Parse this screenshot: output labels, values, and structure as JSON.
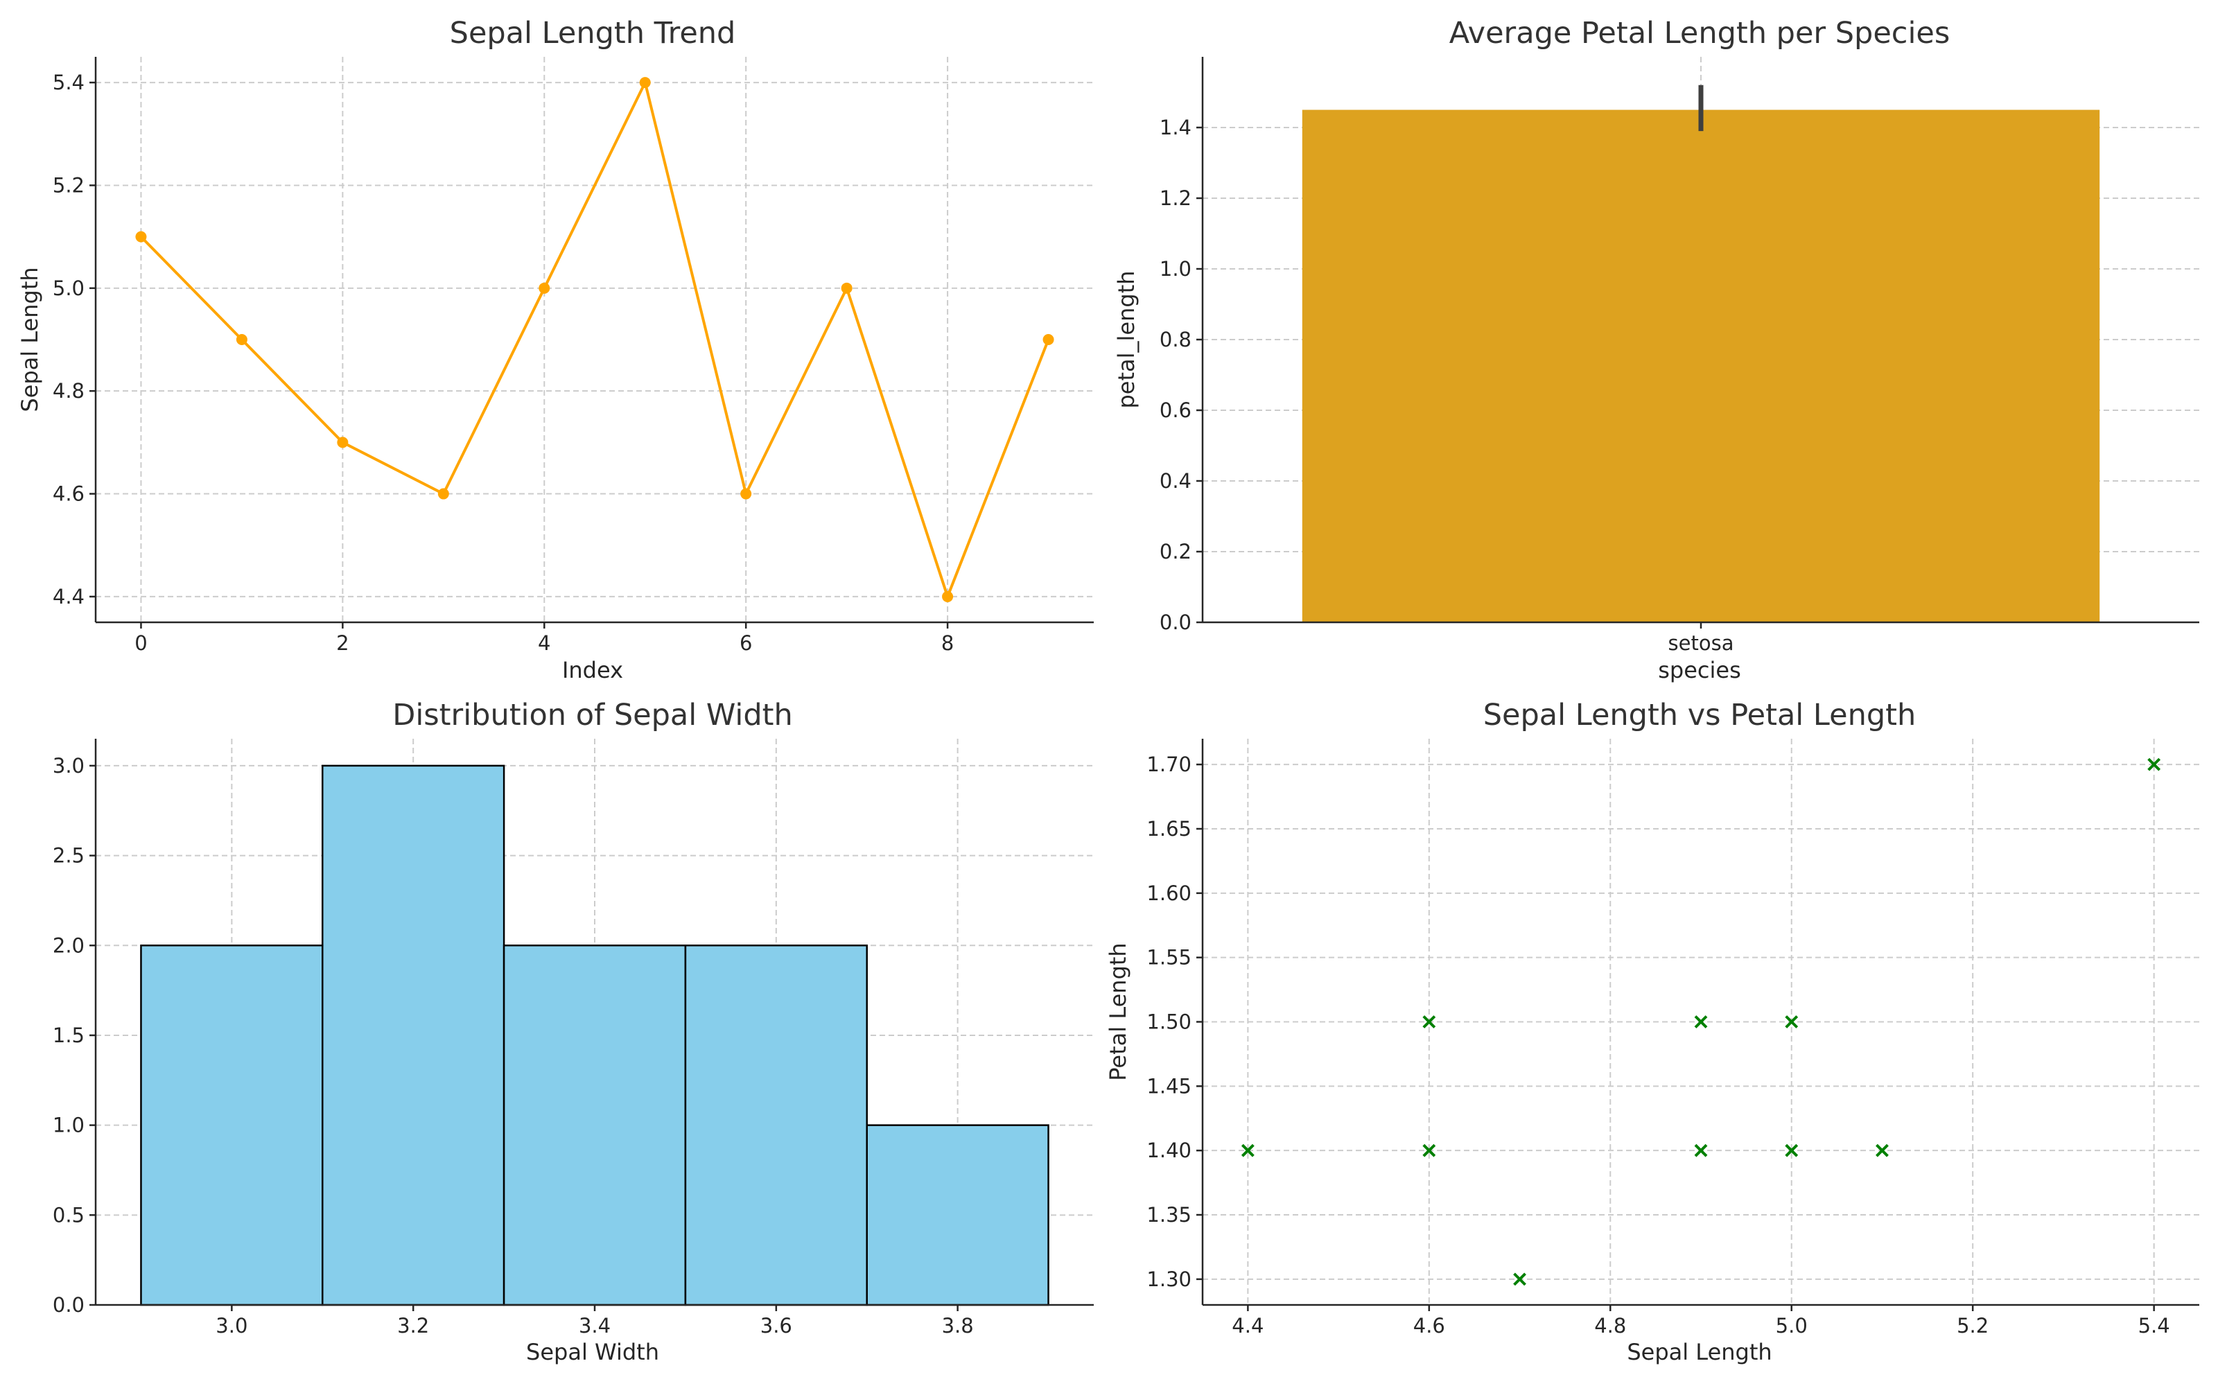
{
  "chart_data": [
    {
      "type": "line",
      "title": "Sepal Length Trend",
      "xlabel": "Index",
      "ylabel": "Sepal Length",
      "x": [
        0,
        1,
        2,
        3,
        4,
        5,
        6,
        7,
        8,
        9
      ],
      "values": [
        5.1,
        4.9,
        4.7,
        4.6,
        5.0,
        5.4,
        4.6,
        5.0,
        4.4,
        4.9
      ],
      "xlim": [
        -0.45,
        9.45
      ],
      "ylim": [
        4.35,
        5.45
      ],
      "xticks": [
        0,
        2,
        4,
        6,
        8
      ],
      "xtick_labels": [
        "0",
        "2",
        "4",
        "6",
        "8"
      ],
      "yticks": [
        4.4,
        4.6,
        4.8,
        5.0,
        5.2,
        5.4
      ],
      "ytick_labels": [
        "4.4",
        "4.6",
        "4.8",
        "5.0",
        "5.2",
        "5.4"
      ],
      "grid": true,
      "line_color": "#FFA500",
      "marker": "circle"
    },
    {
      "type": "bar",
      "title": "Average Petal Length per Species",
      "xlabel": "species",
      "ylabel": "petal_length",
      "categories": [
        "setosa"
      ],
      "values": [
        1.45
      ],
      "error_bars": [
        [
          1.39,
          1.52
        ]
      ],
      "ylim": [
        0,
        1.6
      ],
      "yticks": [
        0.0,
        0.2,
        0.4,
        0.6,
        0.8,
        1.0,
        1.2,
        1.4
      ],
      "ytick_labels": [
        "0.0",
        "0.2",
        "0.4",
        "0.6",
        "0.8",
        "1.0",
        "1.2",
        "1.4"
      ],
      "grid": true,
      "bar_color": "#DDA21F",
      "error_color": "#3f3f3f"
    },
    {
      "type": "bar",
      "subtype": "histogram",
      "title": "Distribution of Sepal Width",
      "xlabel": "Sepal Width",
      "ylabel": "",
      "bins": [
        {
          "start": 2.9,
          "end": 3.1,
          "count": 2
        },
        {
          "start": 3.1,
          "end": 3.3,
          "count": 3
        },
        {
          "start": 3.3,
          "end": 3.5,
          "count": 2
        },
        {
          "start": 3.5,
          "end": 3.7,
          "count": 2
        },
        {
          "start": 3.7,
          "end": 3.9,
          "count": 1
        }
      ],
      "xlim": [
        2.85,
        3.95
      ],
      "ylim": [
        0,
        3.15
      ],
      "xticks": [
        3.0,
        3.2,
        3.4,
        3.6,
        3.8
      ],
      "xtick_labels": [
        "3.0",
        "3.2",
        "3.4",
        "3.6",
        "3.8"
      ],
      "yticks": [
        0.0,
        0.5,
        1.0,
        1.5,
        2.0,
        2.5,
        3.0
      ],
      "ytick_labels": [
        "0.0",
        "0.5",
        "1.0",
        "1.5",
        "2.0",
        "2.5",
        "3.0"
      ],
      "grid": true,
      "bar_color": "#87CEEB",
      "edge_color": "#000000"
    },
    {
      "type": "scatter",
      "title": "Sepal Length vs Petal Length",
      "xlabel": "Sepal Length",
      "ylabel": "Petal Length",
      "x": [
        5.1,
        4.9,
        4.7,
        4.6,
        5.0,
        5.4,
        4.6,
        5.0,
        4.4,
        4.9
      ],
      "y": [
        1.4,
        1.4,
        1.3,
        1.5,
        1.4,
        1.7,
        1.4,
        1.5,
        1.4,
        1.5
      ],
      "xlim": [
        4.35,
        5.45
      ],
      "ylim": [
        1.28,
        1.72
      ],
      "xticks": [
        4.4,
        4.6,
        4.8,
        5.0,
        5.2,
        5.4
      ],
      "xtick_labels": [
        "4.4",
        "4.6",
        "4.8",
        "5.0",
        "5.2",
        "5.4"
      ],
      "yticks": [
        1.3,
        1.35,
        1.4,
        1.45,
        1.5,
        1.55,
        1.6,
        1.65,
        1.7
      ],
      "ytick_labels": [
        "1.30",
        "1.35",
        "1.40",
        "1.45",
        "1.50",
        "1.55",
        "1.60",
        "1.65",
        "1.70"
      ],
      "grid": true,
      "marker": "x",
      "marker_color": "#008000"
    }
  ]
}
